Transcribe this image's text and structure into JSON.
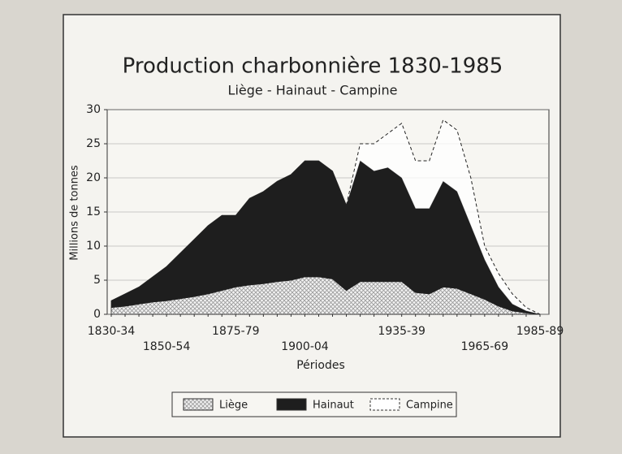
{
  "chart_data": {
    "type": "stacked-area",
    "title": "Production charbonnière 1830-1985",
    "subtitle": "Liège - Hainaut - Campine",
    "y_label": "Millions de tonnes",
    "x_label": "Périodes",
    "categories": [
      "1830-34",
      null,
      null,
      null,
      "1850-54",
      null,
      null,
      null,
      null,
      "1875-79",
      null,
      null,
      null,
      null,
      "1900-04",
      null,
      null,
      null,
      null,
      null,
      null,
      "1935-39",
      null,
      null,
      null,
      null,
      null,
      "1965-69",
      null,
      null,
      null,
      "1985-89"
    ],
    "series": [
      {
        "name": "Liège",
        "color": "#b8b8b8",
        "values": [
          1.0,
          1.2,
          1.5,
          1.8,
          2.0,
          2.3,
          2.6,
          3.0,
          3.5,
          4.0,
          4.3,
          4.5,
          4.8,
          5.0,
          5.5,
          5.5,
          5.2,
          3.5,
          4.8,
          4.8,
          4.8,
          4.8,
          3.2,
          3.0,
          4.0,
          3.8,
          3.0,
          2.2,
          1.2,
          0.5,
          0.2,
          0
        ]
      },
      {
        "name": "Hainaut",
        "color": "#1e1e1e",
        "values": [
          1.0,
          1.8,
          2.5,
          3.7,
          5.0,
          6.7,
          8.4,
          10.0,
          11.0,
          10.5,
          12.7,
          13.5,
          14.7,
          15.5,
          17.0,
          17.0,
          15.8,
          12.5,
          17.7,
          16.2,
          16.7,
          15.2,
          12.3,
          12.5,
          15.5,
          14.2,
          10.0,
          5.8,
          2.8,
          1.0,
          0.3,
          0
        ]
      },
      {
        "name": "Campine",
        "color": "#ffffff",
        "values": [
          null,
          null,
          null,
          null,
          null,
          null,
          null,
          null,
          null,
          null,
          null,
          null,
          null,
          null,
          null,
          null,
          null,
          0,
          2.5,
          4.0,
          5.0,
          8.0,
          7.0,
          7.0,
          9.0,
          9.0,
          7.0,
          2.0,
          2.0,
          1.5,
          0.5,
          0
        ]
      }
    ],
    "ylim": [
      0,
      30
    ],
    "yticks": [
      0,
      5,
      10,
      15,
      20,
      25,
      30
    ],
    "grid": true,
    "legend": "bottom"
  }
}
